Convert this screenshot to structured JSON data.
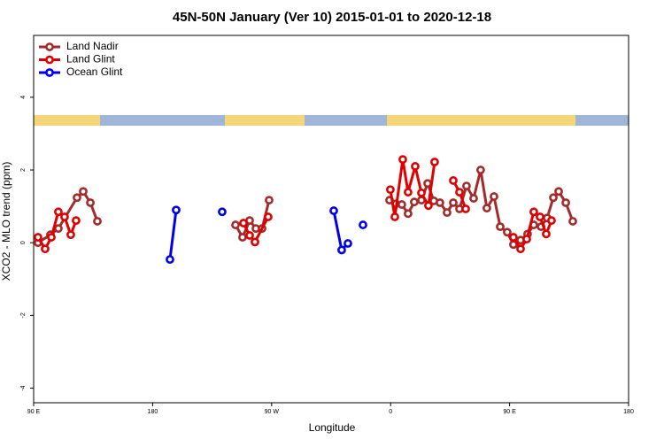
{
  "chart_data": {
    "type": "line",
    "title": "45N-50N January (Ver 10)   2015-01-01 to 2020-12-18",
    "x_label": "Longitude",
    "y_label": "XCO2 - MLO trend (ppm)",
    "xlim": [
      90,
      540
    ],
    "ylim": [
      -4.4,
      5.7
    ],
    "xticks": [
      {
        "value": 90,
        "label": "90 E"
      },
      180,
      {
        "value": 270,
        "label": "90 W"
      },
      {
        "value": 360,
        "label": "0"
      },
      {
        "value": 450,
        "label": "90 E"
      },
      {
        "value": 540,
        "label": "180"
      }
    ],
    "yticks": [
      -4,
      -2,
      0,
      2,
      4
    ],
    "legend": "top-left",
    "series": [
      {
        "name": "Land Nadir",
        "color": "#a52a2a",
        "x": [
          93.3,
          102.7,
          108.7,
          122.8,
          127.5,
          132.9,
          138.2,
          null,
          242.7,
          248.0,
          253.4,
          258.1,
          262.8,
          268.1,
          null,
          359.2,
          363.9,
          368.5,
          373.2,
          377.9,
          383.3,
          388.0,
          392.7,
          397.3,
          402.7,
          407.4,
          412.1,
          417.4,
          422.8,
          428.1,
          432.8,
          438.2,
          442.9,
          448.2,
          452.9,
          458.3,
          463.6,
          468.3,
          473.8,
          478.4,
          483.1,
          487.1,
          492.5,
          497.8
        ],
        "values": [
          0,
          0.22,
          0.39,
          1.24,
          1.41,
          1.1,
          0.59,
          null,
          0.49,
          0.15,
          0.61,
          0.39,
          0.39,
          1.17,
          null,
          1.17,
          1.07,
          1.05,
          0.8,
          1.12,
          1.17,
          1.63,
          1.15,
          1.1,
          0.83,
          1.1,
          0.93,
          1.56,
          1.22,
          2.0,
          0.95,
          1.27,
          0.44,
          0.29,
          -0.05,
          0.07,
          0.24,
          0.49,
          0.44,
          0.68,
          1.24,
          1.41,
          1.1,
          0.59
        ]
      },
      {
        "name": "Land Glint",
        "color": "#e00000",
        "x": [
          93.3,
          98.7,
          103.4,
          108.7,
          113.4,
          118.1,
          122.1,
          null,
          248.7,
          253.4,
          257.4,
          267.4,
          null,
          359.8,
          363.2,
          369.2,
          373.2,
          378.6,
          383.3,
          388.6,
          393.3,
          null,
          407.4,
          412.1,
          416.8,
          null,
          452.9,
          458.3,
          463.0,
          468.3,
          473.0,
          477.7,
          481.7
        ],
        "values": [
          0.15,
          -0.17,
          0.15,
          0.85,
          0.71,
          0.22,
          0.61,
          null,
          0.54,
          0.2,
          0.02,
          0.71,
          null,
          1.46,
          0.71,
          2.29,
          1.39,
          2.1,
          1.37,
          1.02,
          2.22,
          null,
          1.71,
          1.39,
          0.93,
          null,
          0.15,
          -0.17,
          0.1,
          0.85,
          0.71,
          0.24,
          0.61
        ]
      },
      {
        "name": "Ocean Glint",
        "color": "#0000ee",
        "x": [
          193.1,
          197.8,
          null,
          232.6,
          null,
          317.0,
          323.0,
          327.7,
          null,
          339.1
        ],
        "values": [
          -0.46,
          0.9,
          null,
          0.85,
          null,
          0.88,
          -0.2,
          -0.02,
          null,
          0.49
        ]
      }
    ]
  }
}
